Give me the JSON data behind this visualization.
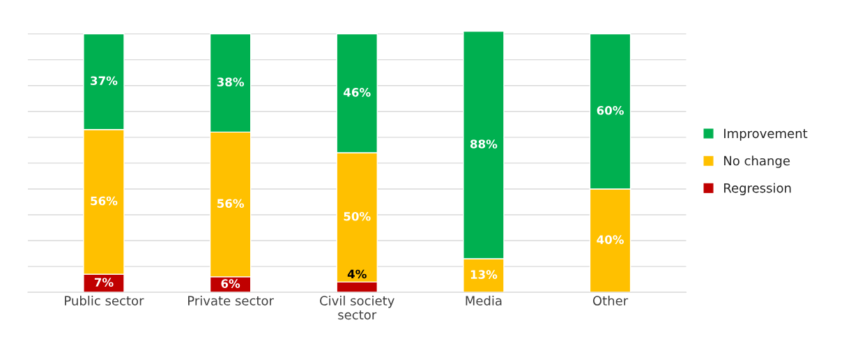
{
  "chart_data": {
    "type": "bar",
    "stacked": true,
    "categories": [
      "Public sector",
      "Private sector",
      "Civil society\nsector",
      "Media",
      "Other"
    ],
    "series": [
      {
        "name": "Regression",
        "color": "#c00000",
        "values": [
          7,
          6,
          4,
          null,
          null
        ],
        "value_labels": [
          "7%",
          "6%",
          "4%",
          null,
          null
        ]
      },
      {
        "name": "No change",
        "color": "#ffc000",
        "values": [
          56,
          56,
          50,
          13,
          40
        ],
        "value_labels": [
          "56%",
          "56%",
          "50%",
          "13%",
          "40%"
        ]
      },
      {
        "name": "Improvement",
        "color": "#00b050",
        "values": [
          37,
          38,
          46,
          88,
          60
        ],
        "value_labels": [
          "37%",
          "38%",
          "46%",
          "88%",
          "60%"
        ]
      }
    ],
    "ylim": [
      0,
      101
    ],
    "yticks": [
      {
        "value": 0,
        "label": null
      },
      {
        "value": 10,
        "label": null
      },
      {
        "value": 20,
        "label": null
      },
      {
        "value": 30,
        "label": null
      },
      {
        "value": 40,
        "label": null
      },
      {
        "value": 50,
        "label": null
      },
      {
        "value": 60,
        "label": null
      },
      {
        "value": 70,
        "label": null
      },
      {
        "value": 80,
        "label": null
      },
      {
        "value": 90,
        "label": null
      },
      {
        "value": 100,
        "label": null
      }
    ],
    "grid": "y",
    "legend": "right",
    "tick_labels": "x"
  }
}
